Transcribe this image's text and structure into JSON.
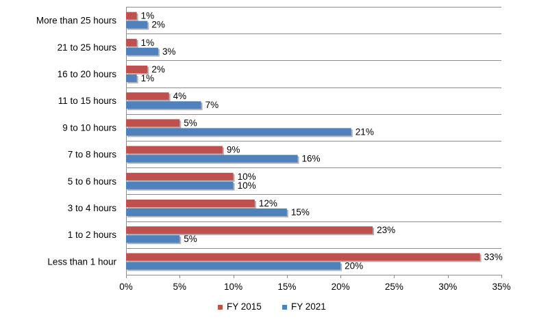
{
  "chart_data": {
    "type": "bar",
    "orientation": "horizontal",
    "categories": [
      "More than 25 hours",
      "21 to 25 hours",
      "16 to 20 hours",
      "11 to 15 hours",
      "9 to 10 hours",
      "7 to 8 hours",
      "5 to 6 hours",
      "3 to 4 hours",
      "1 to 2 hours",
      "Less than 1 hour"
    ],
    "series": [
      {
        "name": "FY 2015",
        "color": "#c0504d",
        "values": [
          1,
          1,
          2,
          4,
          5,
          9,
          10,
          12,
          23,
          33
        ]
      },
      {
        "name": "FY 2021",
        "color": "#4f81bd",
        "values": [
          2,
          3,
          1,
          7,
          21,
          16,
          10,
          15,
          5,
          20
        ]
      }
    ],
    "xlim": [
      0,
      35
    ],
    "xticks": [
      0,
      5,
      10,
      15,
      20,
      25,
      30,
      35
    ],
    "tick_suffix": "%",
    "grid": true,
    "legend": "bottom",
    "title": "",
    "xlabel": "",
    "ylabel": ""
  }
}
